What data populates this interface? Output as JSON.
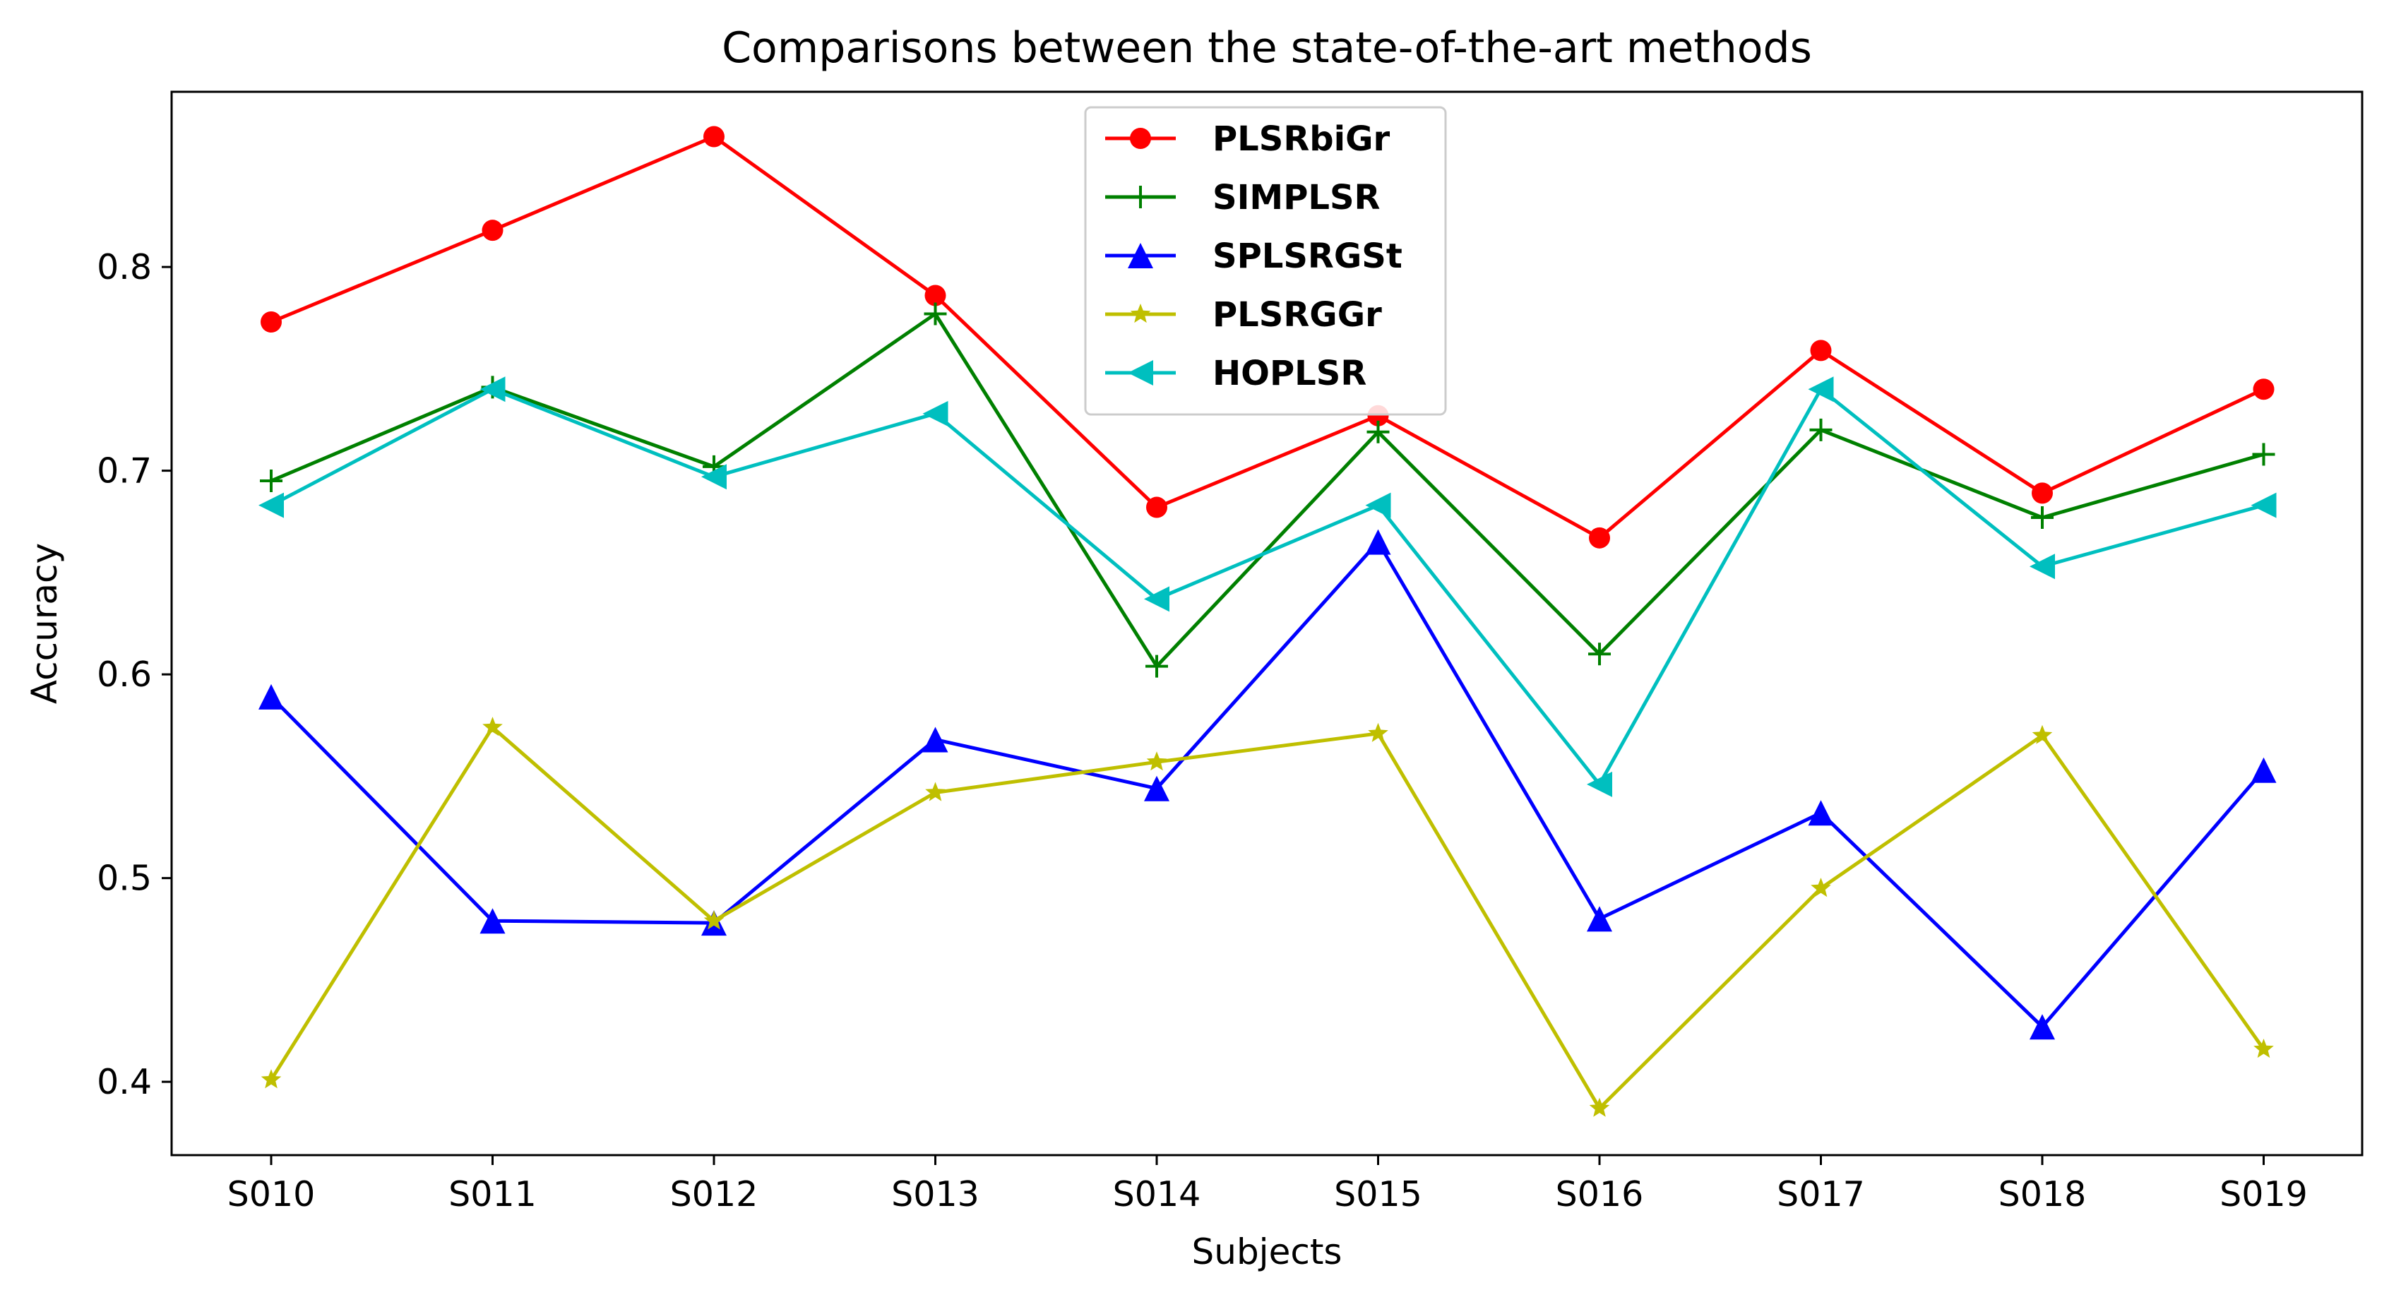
{
  "chart_data": {
    "type": "line",
    "title": "Comparisons between the state-of-the-art methods",
    "xlabel": "Subjects",
    "ylabel": "Accuracy",
    "categories": [
      "S010",
      "S011",
      "S012",
      "S013",
      "S014",
      "S015",
      "S016",
      "S017",
      "S018",
      "S019"
    ],
    "yticks": [
      "0.4",
      "0.5",
      "0.6",
      "0.7",
      "0.8"
    ],
    "ylim": [
      0.364,
      0.886
    ],
    "grid": false,
    "legend_position": "top-center",
    "series": [
      {
        "name": "PLSRbiGr",
        "color": "#ff0000",
        "marker": "circle",
        "values": [
          0.773,
          0.818,
          0.864,
          0.786,
          0.682,
          0.727,
          0.667,
          0.759,
          0.689,
          0.74
        ]
      },
      {
        "name": "SIMPLSR",
        "color": "#008000",
        "marker": "plus",
        "values": [
          0.695,
          0.741,
          0.702,
          0.777,
          0.604,
          0.719,
          0.61,
          0.72,
          0.677,
          0.708
        ]
      },
      {
        "name": "SPLSRGSt",
        "color": "#0000ff",
        "marker": "triangle-up",
        "values": [
          0.589,
          0.479,
          0.478,
          0.568,
          0.544,
          0.665,
          0.48,
          0.532,
          0.427,
          0.553
        ]
      },
      {
        "name": "PLSRGGr",
        "color": "#bfbf00",
        "marker": "star",
        "values": [
          0.401,
          0.574,
          0.479,
          0.542,
          0.557,
          0.571,
          0.387,
          0.495,
          0.57,
          0.416
        ]
      },
      {
        "name": "HOPLSR",
        "color": "#00bfbf",
        "marker": "triangle-left",
        "values": [
          0.683,
          0.74,
          0.697,
          0.728,
          0.637,
          0.683,
          0.546,
          0.74,
          0.653,
          0.683
        ]
      }
    ]
  }
}
